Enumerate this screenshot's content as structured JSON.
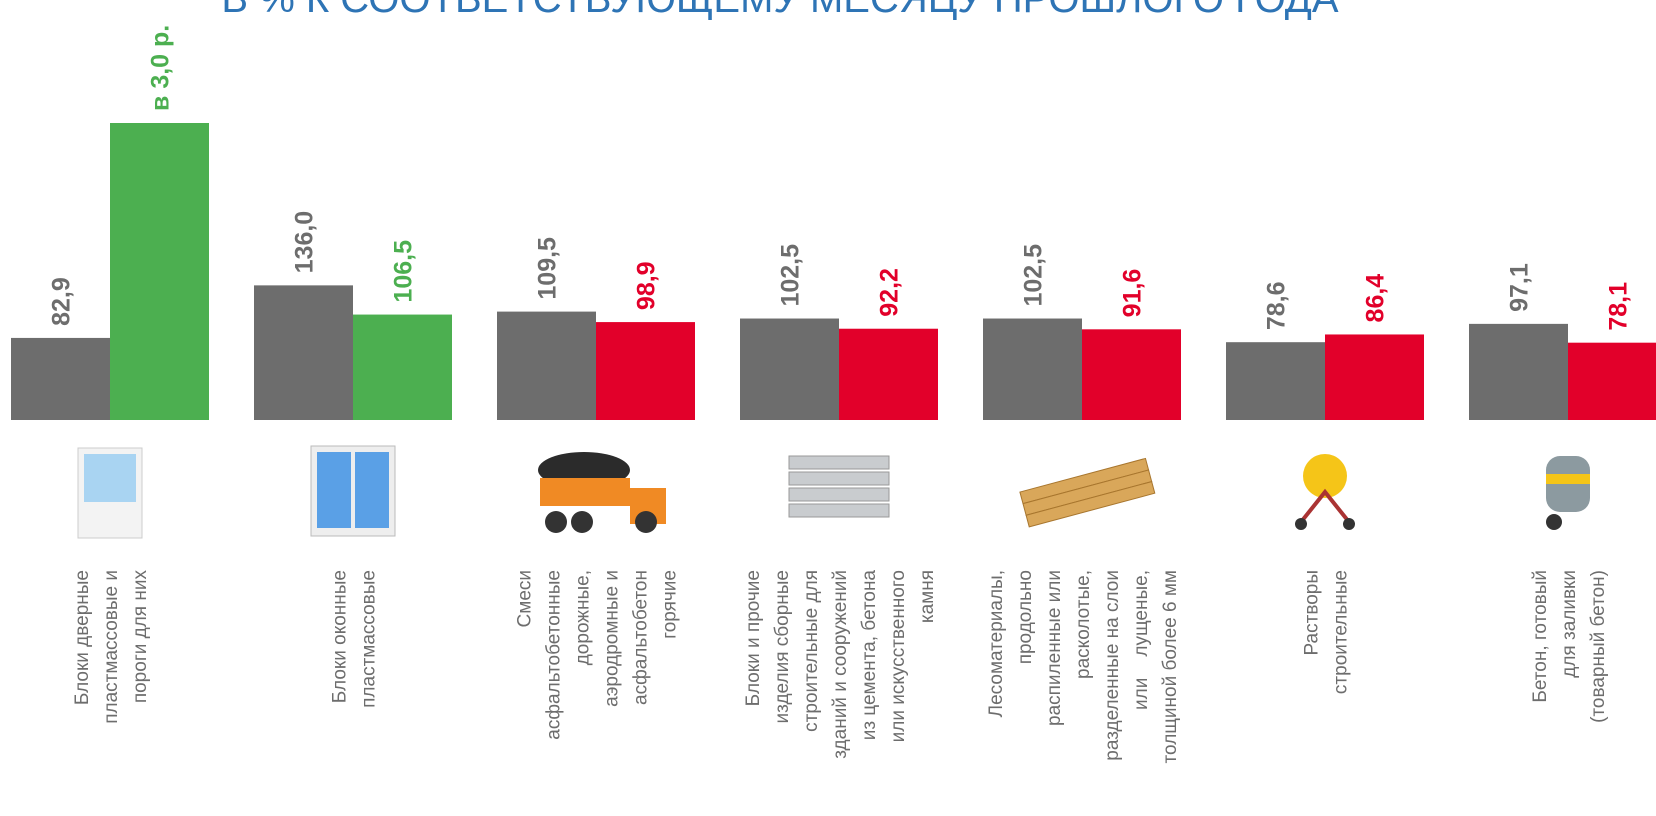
{
  "chart_data": {
    "type": "bar",
    "title": "В % К СООТВЕТСТВУЮЩЕМУ МЕСЯЦУ ПРОШЛОГО ГОДА",
    "categories": [
      "Блоки дверные\nпластмассовые и\nпороги для них",
      "Блоки оконные\nпластмассовые",
      "Смеси\nасфальтобетонные\nдорожные,\nаэродромные и\nасфальтобетон\nгорячие",
      "Блоки и прочие\nизделия сборные\nстроительные для\nзданий и сооружений\nиз цемента, бетона\nили искусственного\nкамня",
      "Лесоматериалы,\nпродольно\nраспиленные или\nрасколотые,\nразделенные на слои\nили    лущеные,\nтолщиной более 6 мм",
      "Растворы\nстроительные",
      "Бетон, готовый\nдля заливки\n(товарный бетон)"
    ],
    "series": [
      {
        "color": "#6d6d6d",
        "values": [
          82.9,
          136.0,
          109.5,
          102.5,
          102.5,
          78.6,
          97.1
        ],
        "value_labels": [
          "82,9",
          "136,0",
          "109,5",
          "102,5",
          "102,5",
          "78,6",
          "97,1"
        ]
      },
      {
        "colors": [
          "#4caf50",
          "#4caf50",
          "#e2002a",
          "#e2002a",
          "#e2002a",
          "#e2002a",
          "#e2002a"
        ],
        "values": [
          300,
          106.5,
          98.9,
          92.2,
          91.6,
          86.4,
          78.1
        ],
        "value_labels": [
          "в 3,0 р.",
          "106,5",
          "98,9",
          "92,2",
          "91,6",
          "86,4",
          "78,1"
        ]
      }
    ]
  }
}
